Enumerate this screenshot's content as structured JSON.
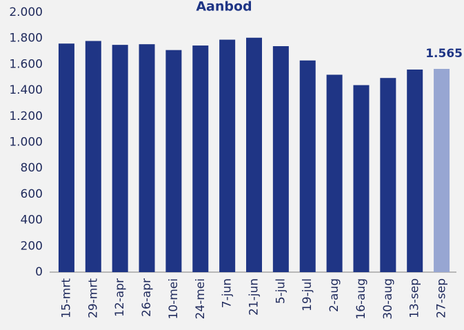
{
  "chart_data": {
    "type": "bar",
    "title": "Aanbod",
    "categories": [
      "15-mrt",
      "29-mrt",
      "12-apr",
      "26-apr",
      "10-mei",
      "24-mei",
      "7-jun",
      "21-jun",
      "5-jul",
      "19-jul",
      "2-aug",
      "16-aug",
      "30-aug",
      "13-sep",
      "27-sep"
    ],
    "values": [
      1760,
      1780,
      1750,
      1755,
      1710,
      1745,
      1790,
      1805,
      1740,
      1630,
      1520,
      1440,
      1495,
      1560,
      1565
    ],
    "value_labels": [
      null,
      null,
      null,
      null,
      null,
      null,
      null,
      null,
      null,
      null,
      null,
      null,
      null,
      null,
      "1.565"
    ],
    "colors": [
      "#1f3585",
      "#1f3585",
      "#1f3585",
      "#1f3585",
      "#1f3585",
      "#1f3585",
      "#1f3585",
      "#1f3585",
      "#1f3585",
      "#1f3585",
      "#1f3585",
      "#1f3585",
      "#1f3585",
      "#1f3585",
      "#97a6d2"
    ],
    "ylim": [
      0,
      2000
    ],
    "yticks": [
      0,
      200,
      400,
      600,
      800,
      {
        "value": 1000,
        "label": "1.000"
      },
      {
        "value": 1200,
        "label": "1.200"
      },
      {
        "value": 1400,
        "label": "1.400"
      },
      {
        "value": 1600,
        "label": "1.600"
      },
      {
        "value": 1800,
        "label": "1.800"
      },
      {
        "value": 2000,
        "label": "2.000"
      }
    ],
    "grid": false
  }
}
